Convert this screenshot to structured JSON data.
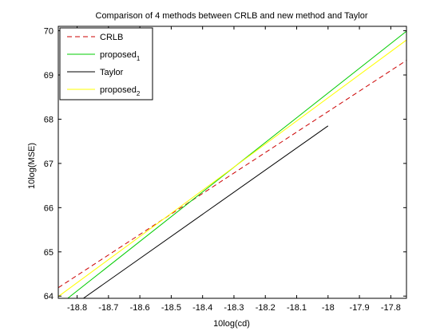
{
  "chart_data": {
    "type": "line",
    "title": "Comparison of 4 methods between CRLB and new method and Taylor",
    "xlabel": "10log(cd)",
    "ylabel": "10log(MSE)",
    "xlim": [
      -18.86,
      -17.75
    ],
    "ylim": [
      63.95,
      70.1
    ],
    "xticks": [
      -18.8,
      -18.7,
      -18.6,
      -18.5,
      -18.4,
      -18.3,
      -18.2,
      -18.1,
      -18,
      -17.9,
      -17.8
    ],
    "xtick_labels": [
      "-18.8",
      "-18.7",
      "-18.6",
      "-18.5",
      "-18.4",
      "-18.3",
      "-18.2",
      "-18.1",
      "-18",
      "-17.9",
      "-17.8"
    ],
    "yticks": [
      64,
      65,
      66,
      67,
      68,
      69,
      70
    ],
    "ytick_labels": [
      "64",
      "65",
      "66",
      "67",
      "68",
      "69",
      "70"
    ],
    "grid": false,
    "legend_position": "top-left",
    "series": [
      {
        "name": "CRLB",
        "legend_main": "CRLB",
        "legend_sub": "",
        "color": "#cc0000",
        "style": "dashed",
        "x": [
          -18.86,
          -17.75
        ],
        "y": [
          64.19,
          69.33
        ]
      },
      {
        "name": "proposed1",
        "legend_main": "proposed",
        "legend_sub": "1",
        "color": "#00cc00",
        "style": "solid",
        "x": [
          -18.83,
          -17.75
        ],
        "y": [
          63.95,
          69.99
        ]
      },
      {
        "name": "Taylor",
        "legend_main": "Taylor",
        "legend_sub": "",
        "color": "#000000",
        "style": "solid",
        "x": [
          -18.78,
          -18.0
        ],
        "y": [
          63.95,
          67.85
        ]
      },
      {
        "name": "proposed2",
        "legend_main": "proposed",
        "legend_sub": "2",
        "color": "#ffff00",
        "style": "solid",
        "x": [
          -18.86,
          -17.75
        ],
        "y": [
          63.99,
          69.79
        ]
      }
    ]
  }
}
